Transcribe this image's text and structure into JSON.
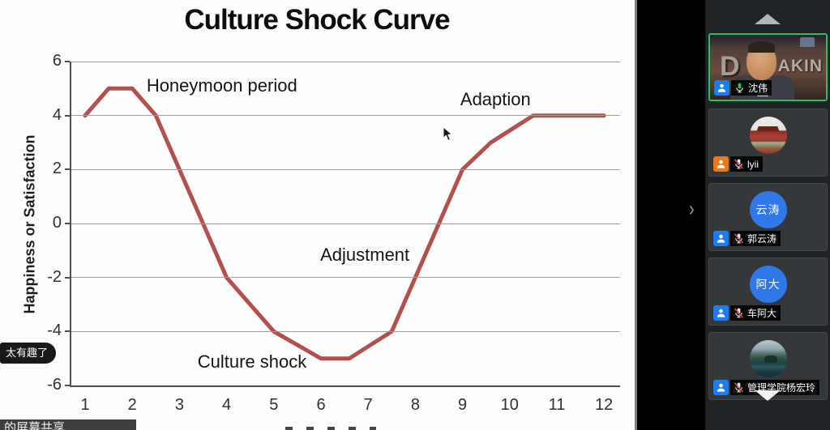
{
  "chart_data": {
    "type": "line",
    "title": "Culture Shock Curve",
    "ylabel": "Happiness or Satisfaction",
    "xlabel": "",
    "xlim": [
      1,
      12
    ],
    "ylim": [
      -6,
      6
    ],
    "xticks": [
      1,
      2,
      3,
      4,
      5,
      6,
      7,
      8,
      9,
      10,
      11,
      12
    ],
    "yticks": [
      6,
      4,
      2,
      0,
      -2,
      -4,
      -6
    ],
    "grid": "horizontal",
    "legend": false,
    "line_color": "#b2504e",
    "series": [
      {
        "name": "Happiness or Satisfaction",
        "points": [
          [
            1,
            4
          ],
          [
            1.5,
            5
          ],
          [
            2,
            5
          ],
          [
            2.5,
            4
          ],
          [
            4,
            -2
          ],
          [
            5,
            -4
          ],
          [
            6,
            -5
          ],
          [
            6.6,
            -5
          ],
          [
            7.5,
            -4
          ],
          [
            9,
            2
          ],
          [
            9.6,
            3
          ],
          [
            10.5,
            4
          ],
          [
            12,
            4
          ]
        ]
      }
    ],
    "annotations": [
      {
        "text": "Honeymoon period",
        "x": 3.9,
        "y": 5.1
      },
      {
        "text": "Adaption",
        "x": 9.7,
        "y": 4.6
      },
      {
        "text": "Adjustment",
        "x": 6.93,
        "y": -1.18
      },
      {
        "text": "Culture shock",
        "x": 4.54,
        "y": -5.13
      }
    ]
  },
  "meeting": {
    "chat_bubble": "太有趣了",
    "screen_share_label": "的屏幕共享",
    "colors": {
      "speaking_border": "#2bbd5e",
      "mic_on": "#35c24d",
      "mic_muted_slash": "#e0483e",
      "participant_blue": "#1e7cf2",
      "participant_orange": "#e8791f",
      "avatar_blue": "#2f78e8"
    },
    "sidebar": {
      "participants": [
        {
          "name": "沈伟",
          "muted": false,
          "speaking": true,
          "badge_color": "#1e7cf2",
          "avatar_type": "photo-deakin",
          "sign_left": "D",
          "sign_right": "AKIN"
        },
        {
          "name": "lyii",
          "muted": true,
          "speaking": false,
          "badge_color": "#e8791f",
          "avatar_type": "photo-tiananmen"
        },
        {
          "name": "郭云涛",
          "muted": true,
          "speaking": false,
          "badge_color": "#1e7cf2",
          "avatar_type": "initials",
          "avatar_text": "云涛",
          "avatar_color": "#2f78e8"
        },
        {
          "name": "车阿大",
          "muted": true,
          "speaking": false,
          "badge_color": "#1e7cf2",
          "avatar_type": "initials",
          "avatar_text": "阿大",
          "avatar_color": "#2f78e8"
        },
        {
          "name": "管理学院杨宏玲",
          "muted": true,
          "speaking": false,
          "badge_color": "#1e7cf2",
          "avatar_type": "photo-lake"
        }
      ]
    }
  }
}
